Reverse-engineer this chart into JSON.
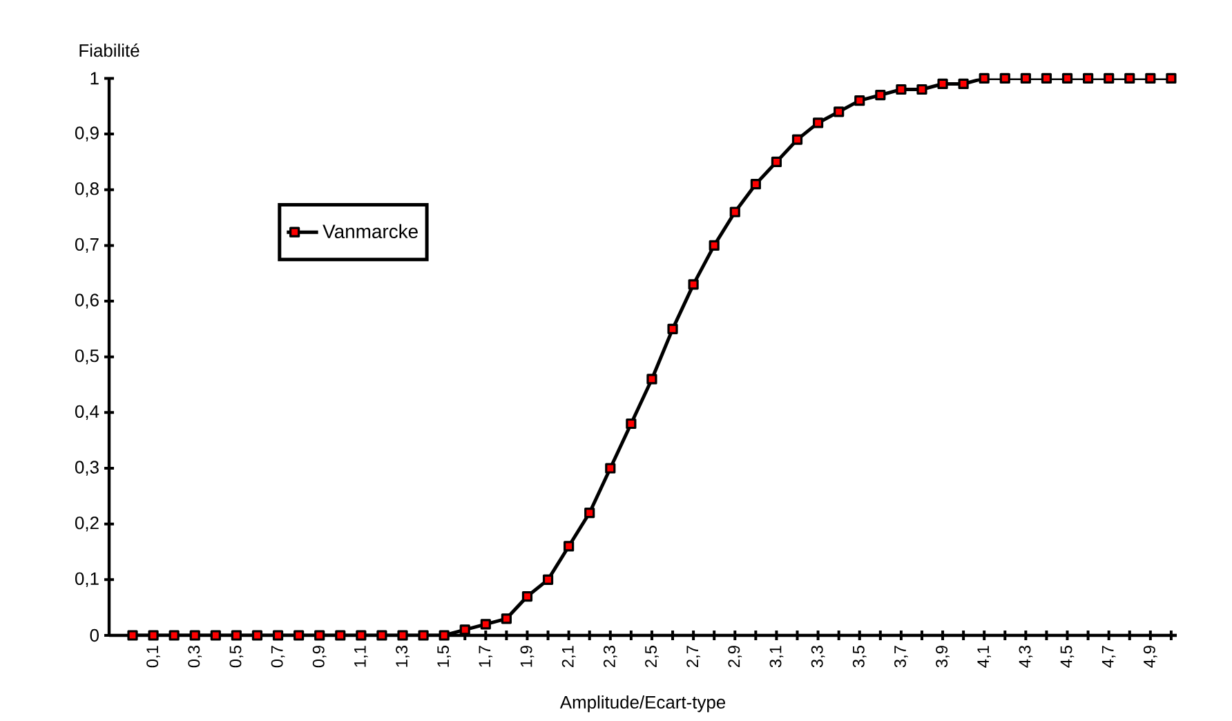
{
  "chart_data": {
    "type": "line",
    "xlabel": "Amplitude/Ecart-type",
    "ylabel": "Fiabilité",
    "categories": [
      null,
      "0,1",
      null,
      "0,3",
      null,
      "0,5",
      null,
      "0,7",
      null,
      "0,9",
      null,
      "1,1",
      null,
      "1,3",
      null,
      "1,5",
      null,
      "1,7",
      null,
      "1,9",
      null,
      "2,1",
      null,
      "2,3",
      null,
      "2,5",
      null,
      "2,7",
      null,
      "2,9",
      null,
      "3,1",
      null,
      "3,3",
      null,
      "3,5",
      null,
      "3,7",
      null,
      "3,9",
      null,
      "4,1",
      null,
      "4,3",
      null,
      "4,5",
      null,
      "4,7",
      null,
      "4,9",
      null
    ],
    "series": [
      {
        "name": "Vanmarcke",
        "color": "#000000",
        "values": [
          0,
          0,
          0,
          0,
          0,
          0,
          0,
          0,
          0,
          0,
          0,
          0,
          0,
          0,
          0,
          0,
          0.01,
          0.02,
          0.03,
          0.07,
          0.1,
          0.16,
          0.22,
          0.3,
          0.38,
          0.46,
          0.55,
          0.63,
          0.7,
          0.76,
          0.81,
          0.85,
          0.89,
          0.92,
          0.94,
          0.96,
          0.97,
          0.98,
          0.98,
          0.99,
          0.99,
          1.0,
          1.0,
          1.0,
          1.0,
          1.0,
          1.0,
          1.0,
          1.0,
          1.0,
          1.0
        ]
      }
    ],
    "ylim": [
      0,
      1
    ],
    "yticks": [
      0,
      {
        "value": 0.1,
        "label": "0,1"
      },
      {
        "value": 0.2,
        "label": "0,2"
      },
      {
        "value": 0.3,
        "label": "0,3"
      },
      {
        "value": 0.4,
        "label": "0,4"
      },
      {
        "value": 0.5,
        "label": "0,5"
      },
      {
        "value": 0.6,
        "label": "0,6"
      },
      {
        "value": 0.7,
        "label": "0,7"
      },
      {
        "value": 0.8,
        "label": "0,8"
      },
      {
        "value": 0.9,
        "label": "0,9"
      },
      1
    ],
    "marker": "square",
    "legend": "top left",
    "grid": false
  }
}
